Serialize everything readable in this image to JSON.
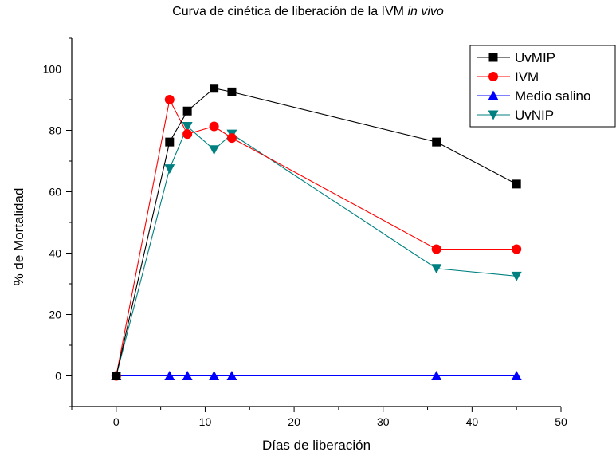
{
  "chart_data": {
    "type": "line",
    "title": "Curva de cinética de liberación de la IVM",
    "title_italic": "in vivo",
    "xlabel": "Días de liberación",
    "ylabel": "% de Mortalidad",
    "xlim": [
      -5,
      50
    ],
    "ylim": [
      -10,
      110
    ],
    "x_ticks": [
      0,
      10,
      20,
      30,
      40,
      50
    ],
    "y_ticks": [
      0,
      20,
      40,
      60,
      80,
      100
    ],
    "grid": false,
    "legend_position": "top-right",
    "series": [
      {
        "name": "UvMIP",
        "color": "#000000",
        "marker": "square",
        "x": [
          0,
          6,
          8,
          11,
          13,
          36,
          45
        ],
        "y": [
          0,
          76.2,
          86.3,
          93.7,
          92.5,
          76.2,
          62.5
        ]
      },
      {
        "name": "IVM",
        "color": "#ff0000",
        "marker": "circle",
        "x": [
          0,
          6,
          8,
          11,
          13,
          36,
          45
        ],
        "y": [
          0,
          90,
          78.8,
          81.3,
          77.5,
          41.3,
          41.3
        ]
      },
      {
        "name": "Medio salino",
        "color": "#0000ff",
        "marker": "triangle-up",
        "x": [
          0,
          6,
          8,
          11,
          13,
          36,
          45
        ],
        "y": [
          0,
          0,
          0,
          0,
          0,
          0,
          0
        ]
      },
      {
        "name": "UvNIP",
        "color": "#008080",
        "marker": "triangle-down",
        "x": [
          0,
          6,
          8,
          11,
          13,
          36,
          45
        ],
        "y": [
          0,
          67.5,
          81.3,
          73.7,
          78.8,
          35,
          32.5
        ]
      }
    ]
  }
}
